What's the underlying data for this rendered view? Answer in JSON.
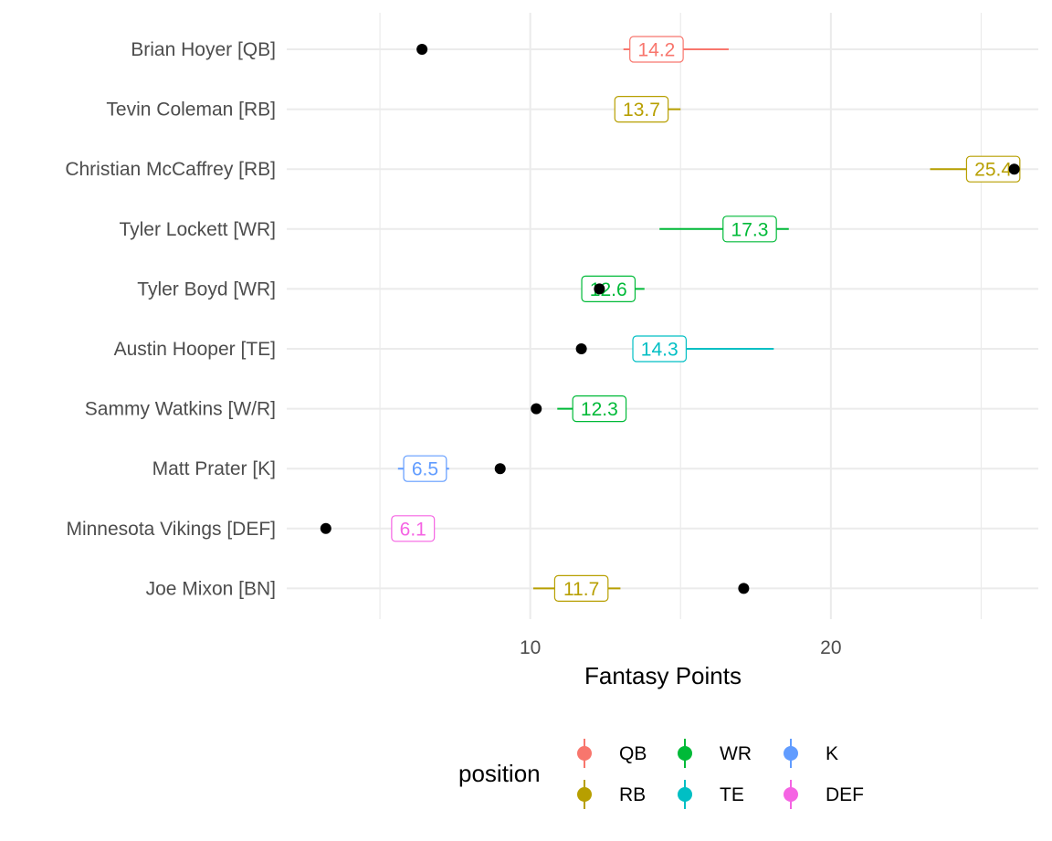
{
  "chart_data": {
    "type": "scatter",
    "title": "",
    "xlabel": "Fantasy Points",
    "ylabel": "",
    "xlim": [
      1.9,
      26.9
    ],
    "x_ticks": [
      10,
      20
    ],
    "x_tick_labels": [
      "10",
      "20"
    ],
    "grid": true,
    "legend": {
      "title": "position",
      "placement": "bottom",
      "entries": [
        {
          "name": "QB",
          "color": "#F8766D"
        },
        {
          "name": "RB",
          "color": "#B79F00"
        },
        {
          "name": "WR",
          "color": "#00BA38"
        },
        {
          "name": "TE",
          "color": "#00BFC4"
        },
        {
          "name": "K",
          "color": "#619CFF"
        },
        {
          "name": "DEF",
          "color": "#F564E3"
        }
      ]
    },
    "rows": [
      {
        "player": "Brian Hoyer [QB]",
        "position": "QB",
        "projected": 14.2,
        "low": 13.1,
        "high": 16.6,
        "actual": 6.4
      },
      {
        "player": "Tevin Coleman [RB]",
        "position": "RB",
        "projected": 13.7,
        "low": 12.9,
        "high": 15.0,
        "actual": null
      },
      {
        "player": "Christian McCaffrey [RB]",
        "position": "RB",
        "projected": 25.4,
        "low": 23.3,
        "high": 26.1,
        "actual": 26.1
      },
      {
        "player": "Tyler Lockett [WR]",
        "position": "WR",
        "projected": 17.3,
        "low": 14.3,
        "high": 18.6,
        "actual": null
      },
      {
        "player": "Tyler Boyd [WR]",
        "position": "WR",
        "projected": 12.6,
        "low": 11.7,
        "high": 13.8,
        "actual": 12.3
      },
      {
        "player": "Austin Hooper [TE]",
        "position": "TE",
        "projected": 14.3,
        "low": 13.5,
        "high": 18.1,
        "actual": 11.7
      },
      {
        "player": "Sammy Watkins [W/R]",
        "position": "WR",
        "projected": 12.3,
        "low": 10.9,
        "high": 12.9,
        "actual": 10.2
      },
      {
        "player": "Matt Prater [K]",
        "position": "K",
        "projected": 6.5,
        "low": 5.6,
        "high": 7.3,
        "actual": 9.0
      },
      {
        "player": "Minnesota Vikings [DEF]",
        "position": "DEF",
        "projected": 6.1,
        "low": 5.5,
        "high": 6.8,
        "actual": 3.2
      },
      {
        "player": "Joe Mixon [BN]",
        "position": "RB",
        "projected": 11.7,
        "low": 10.1,
        "high": 13.0,
        "actual": 17.1
      }
    ]
  }
}
